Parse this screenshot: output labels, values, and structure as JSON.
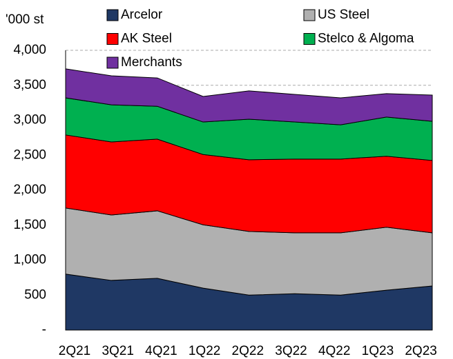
{
  "chart_data": {
    "type": "stacked_area",
    "y_axis_label": "'000 st",
    "categories": [
      "2Q21",
      "3Q21",
      "4Q21",
      "1Q22",
      "2Q22",
      "3Q22",
      "4Q22",
      "1Q23",
      "2Q23"
    ],
    "series": [
      {
        "name": "Arcelor",
        "color": "#1f3864",
        "values": [
          800,
          710,
          740,
          600,
          500,
          520,
          500,
          570,
          630
        ]
      },
      {
        "name": "US Steel",
        "color": "#b0b0b0",
        "values": [
          945,
          935,
          965,
          905,
          910,
          870,
          890,
          900,
          760
        ]
      },
      {
        "name": "AK Steel",
        "color": "#ff0000",
        "values": [
          1045,
          1045,
          1025,
          1005,
          1025,
          1055,
          1055,
          1015,
          1035
        ]
      },
      {
        "name": "Stelco & Algoma",
        "color": "#00b050",
        "values": [
          530,
          530,
          470,
          465,
          580,
          530,
          490,
          560,
          560
        ]
      },
      {
        "name": "Merchants",
        "color": "#7030a0",
        "values": [
          415,
          415,
          405,
          365,
          405,
          395,
          385,
          335,
          375
        ]
      }
    ],
    "ylim": [
      0,
      4000
    ],
    "yticks": [
      {
        "value": 0,
        "label": "-"
      },
      500,
      {
        "value": 1000,
        "label": "1,000"
      },
      {
        "value": 1500,
        "label": "1,500"
      },
      {
        "value": 2000,
        "label": "2,000"
      },
      {
        "value": 2500,
        "label": "2,500"
      },
      {
        "value": 3000,
        "label": "3,000"
      },
      {
        "value": 3500,
        "label": "3,500"
      },
      {
        "value": 4000,
        "label": "4,000"
      }
    ],
    "grid": true,
    "legend_position": "top"
  }
}
